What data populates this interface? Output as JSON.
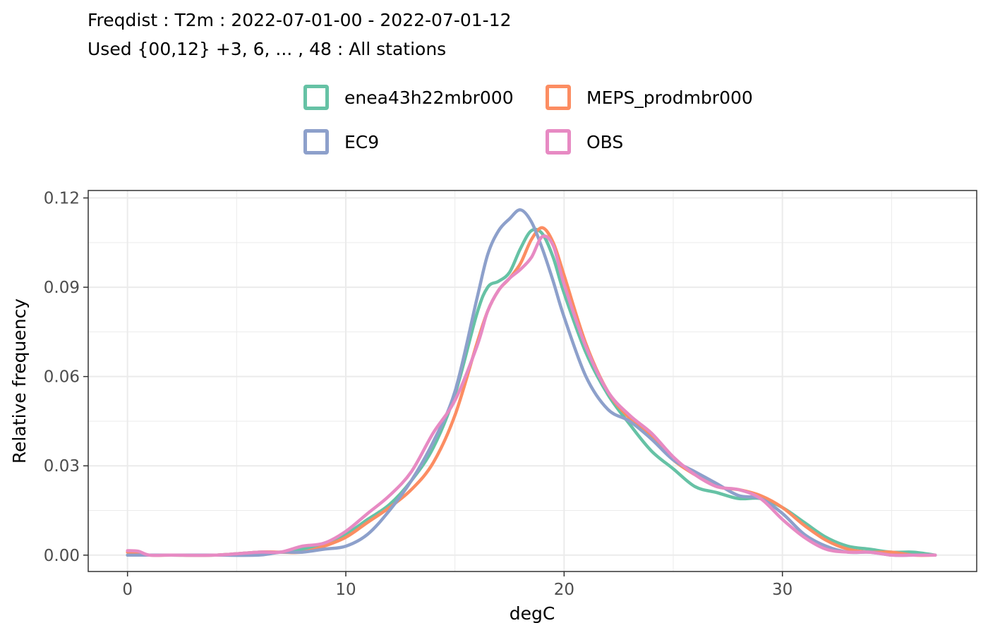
{
  "chart_data": {
    "type": "line",
    "title": "Freqdist : T2m : 2022-07-01-00 - 2022-07-01-12",
    "subtitle": "Used {00,12} +3, 6, ... , 48 : All stations",
    "xlabel": "degC",
    "ylabel": "Relative frequency",
    "xlim": [
      -1.8,
      38.9
    ],
    "ylim": [
      -0.0055,
      0.1225
    ],
    "xticks": [
      0,
      10,
      20,
      30
    ],
    "xtick_labels": [
      "0",
      "10",
      "20",
      "30"
    ],
    "yticks": [
      0.0,
      0.03,
      0.06,
      0.09,
      0.12
    ],
    "ytick_labels": [
      "0.00",
      "0.03",
      "0.06",
      "0.09",
      "0.12"
    ],
    "grid": true,
    "legend_position": "top",
    "series": [
      {
        "name": "enea43h22mbr000",
        "color": "#66c2a5",
        "x": [
          0,
          1,
          2,
          4,
          6,
          7,
          8,
          9,
          10,
          11,
          12,
          13,
          14,
          15,
          16,
          16.5,
          17,
          17.5,
          18,
          18.5,
          19,
          19.5,
          20,
          21,
          22,
          23,
          24,
          25,
          26,
          27,
          28,
          29,
          30,
          31,
          32,
          33,
          34,
          35,
          36,
          37
        ],
        "y": [
          0.0,
          0.0,
          0.0,
          0.0,
          0.001,
          0.001,
          0.002,
          0.004,
          0.007,
          0.012,
          0.017,
          0.025,
          0.036,
          0.054,
          0.081,
          0.09,
          0.092,
          0.095,
          0.103,
          0.109,
          0.108,
          0.1,
          0.088,
          0.068,
          0.054,
          0.044,
          0.035,
          0.029,
          0.023,
          0.021,
          0.019,
          0.019,
          0.016,
          0.011,
          0.006,
          0.003,
          0.002,
          0.001,
          0.001,
          0.0
        ]
      },
      {
        "name": "MEPS_prodmbr000",
        "color": "#fc8d62",
        "x": [
          0,
          1,
          2,
          4,
          6,
          7,
          8,
          9,
          10,
          11,
          12,
          13,
          14,
          15,
          16,
          16.5,
          17,
          17.5,
          18,
          18.5,
          19,
          19.5,
          20,
          21,
          22,
          23,
          24,
          25,
          26,
          27,
          28,
          29,
          30,
          31,
          32,
          33,
          34,
          35,
          36,
          37
        ],
        "y": [
          0.001,
          0.0,
          0.0,
          0.0,
          0.001,
          0.001,
          0.001,
          0.003,
          0.006,
          0.011,
          0.016,
          0.022,
          0.031,
          0.047,
          0.071,
          0.082,
          0.089,
          0.093,
          0.098,
          0.106,
          0.11,
          0.105,
          0.094,
          0.071,
          0.055,
          0.046,
          0.04,
          0.032,
          0.027,
          0.023,
          0.022,
          0.02,
          0.016,
          0.01,
          0.005,
          0.002,
          0.001,
          0.001,
          0.0,
          0.0
        ]
      },
      {
        "name": "EC9",
        "color": "#8da0cb",
        "x": [
          0,
          1,
          2,
          4,
          6,
          7,
          8,
          9,
          10,
          11,
          12,
          13,
          14,
          15,
          16,
          16.5,
          17,
          17.5,
          18,
          18.5,
          19,
          19.5,
          20,
          21,
          22,
          23,
          24,
          25,
          26,
          27,
          28,
          29,
          30,
          31,
          32,
          33,
          34,
          35,
          36,
          37
        ],
        "y": [
          0.0,
          0.0,
          0.0,
          0.0,
          0.0,
          0.001,
          0.001,
          0.002,
          0.003,
          0.007,
          0.015,
          0.025,
          0.038,
          0.055,
          0.086,
          0.101,
          0.109,
          0.113,
          0.116,
          0.112,
          0.103,
          0.092,
          0.08,
          0.06,
          0.049,
          0.045,
          0.039,
          0.032,
          0.028,
          0.024,
          0.02,
          0.019,
          0.014,
          0.007,
          0.003,
          0.001,
          0.001,
          0.0,
          0.0,
          0.0
        ]
      },
      {
        "name": "OBS",
        "color": "#e78ac3",
        "x": [
          0,
          0.5,
          1,
          2,
          4,
          6,
          7,
          8,
          9,
          10,
          11,
          12,
          13,
          14,
          15,
          16,
          16.5,
          17,
          17.5,
          18,
          18.5,
          19,
          19.5,
          20,
          21,
          22,
          23,
          24,
          25,
          26,
          27,
          28,
          29,
          30,
          31,
          32,
          33,
          34,
          35,
          36,
          37
        ],
        "y": [
          0.0015,
          0.0013,
          0.0,
          0.0,
          0.0,
          0.001,
          0.001,
          0.003,
          0.004,
          0.008,
          0.014,
          0.02,
          0.028,
          0.041,
          0.052,
          0.07,
          0.082,
          0.089,
          0.093,
          0.096,
          0.1,
          0.107,
          0.104,
          0.091,
          0.07,
          0.055,
          0.047,
          0.041,
          0.033,
          0.027,
          0.023,
          0.022,
          0.019,
          0.012,
          0.006,
          0.002,
          0.001,
          0.001,
          0.0,
          0.0,
          0.0
        ]
      }
    ]
  }
}
